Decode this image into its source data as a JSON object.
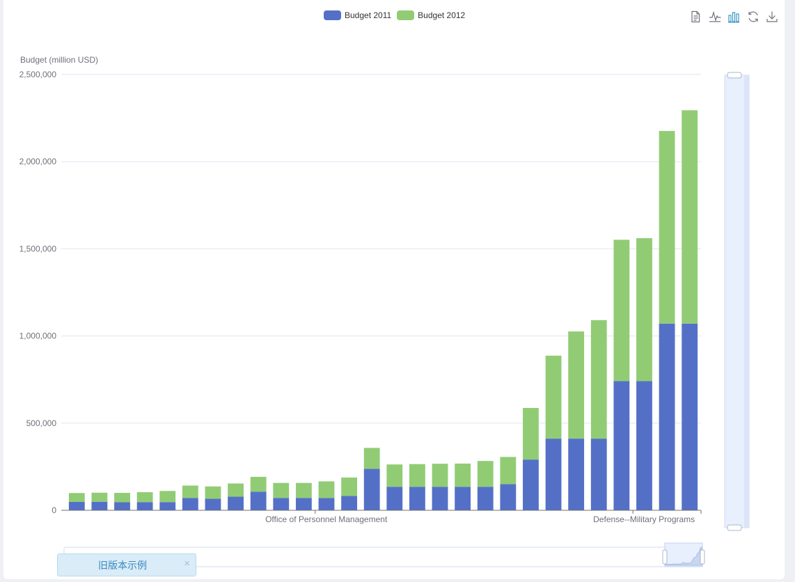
{
  "legend": {
    "items": [
      {
        "label": "Budget 2011",
        "color": "#5470c6"
      },
      {
        "label": "Budget 2012",
        "color": "#91cc75"
      }
    ]
  },
  "toolbox": [
    {
      "name": "data-view-icon"
    },
    {
      "name": "line-chart-icon"
    },
    {
      "name": "bar-chart-icon"
    },
    {
      "name": "restore-icon"
    },
    {
      "name": "download-icon"
    }
  ],
  "banner": {
    "label": "旧版本示例",
    "close": "×"
  },
  "chart_data": {
    "type": "bar",
    "stacked": true,
    "ylabel": "Budget (million USD)",
    "ylim": [
      0,
      2500000
    ],
    "ytick_labels": [
      "0",
      "500,000",
      "1,000,000",
      "1,500,000",
      "2,000,000",
      "2,500,000"
    ],
    "x_shown_labels": [
      {
        "index": 10,
        "label": "Office of Personnel Management"
      },
      {
        "index": 24,
        "label": "Defense--Military Programs"
      }
    ],
    "series": [
      {
        "name": "Budget 2011",
        "color": "#5470c6",
        "values": [
          48000,
          49000,
          46000,
          47000,
          47000,
          71000,
          66000,
          78000,
          107000,
          71000,
          71000,
          70000,
          82000,
          238000,
          135000,
          135000,
          135000,
          135000,
          135000,
          150000,
          291000,
          411000,
          411000,
          411000,
          741000,
          741000,
          1071000,
          1071000
        ]
      },
      {
        "name": "Budget 2012",
        "color": "#91cc75",
        "values": [
          51000,
          52000,
          54000,
          57000,
          64000,
          71000,
          71000,
          76000,
          85000,
          86000,
          86000,
          96000,
          106000,
          120000,
          128000,
          130000,
          132000,
          133000,
          148000,
          156000,
          296000,
          476000,
          615000,
          680000,
          811000,
          820000,
          1105000,
          1224000
        ]
      }
    ]
  }
}
